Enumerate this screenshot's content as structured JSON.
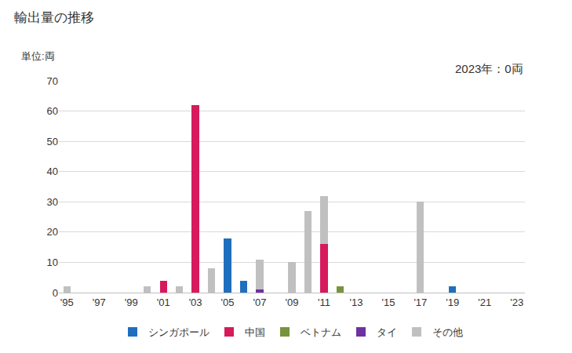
{
  "chart_data": {
    "type": "bar",
    "title": "輸出量の推移",
    "y_label": "単位:両",
    "annotations": [
      "2023年：0両"
    ],
    "categories": [
      "'95",
      null,
      "'97",
      null,
      "'99",
      null,
      "'01",
      null,
      "'03",
      null,
      "'05",
      null,
      "'07",
      null,
      "'09",
      null,
      "'11",
      null,
      "'13",
      null,
      "'15",
      null,
      "'17",
      null,
      "'19",
      null,
      "'21",
      null,
      "'23"
    ],
    "series": [
      {
        "name": "シンガポール",
        "color": "#1f6fbf",
        "values": [
          0,
          0,
          0,
          0,
          0,
          0,
          0,
          0,
          0,
          0,
          18,
          4,
          0,
          0,
          0,
          0,
          0,
          0,
          0,
          0,
          0,
          0,
          0,
          0,
          2,
          0,
          0,
          0,
          0
        ]
      },
      {
        "name": "中国",
        "color": "#d61a5c",
        "values": [
          0,
          0,
          0,
          0,
          0,
          0,
          4,
          0,
          62,
          0,
          0,
          0,
          0,
          0,
          0,
          0,
          16,
          0,
          0,
          0,
          0,
          0,
          0,
          0,
          0,
          0,
          0,
          0,
          0
        ]
      },
      {
        "name": "ベトナム",
        "color": "#77933c",
        "values": [
          0,
          0,
          0,
          0,
          0,
          0,
          0,
          0,
          0,
          0,
          0,
          0,
          0,
          0,
          0,
          0,
          0,
          2,
          0,
          0,
          0,
          0,
          0,
          0,
          0,
          0,
          0,
          0,
          0
        ]
      },
      {
        "name": "タイ",
        "color": "#7030a0",
        "values": [
          0,
          0,
          0,
          0,
          0,
          0,
          0,
          0,
          0,
          0,
          0,
          0,
          1,
          0,
          0,
          0,
          0,
          0,
          0,
          0,
          0,
          0,
          0,
          0,
          0,
          0,
          0,
          0,
          0
        ]
      },
      {
        "name": "その他",
        "color": "#c0c0c0",
        "values": [
          2,
          0,
          0,
          0,
          0,
          2,
          0,
          2,
          0,
          8,
          0,
          0,
          10,
          0,
          10,
          27,
          16,
          0,
          0,
          0,
          0,
          0,
          30,
          0,
          0,
          0,
          0,
          0,
          0
        ]
      }
    ],
    "ylim": [
      0,
      70
    ],
    "yticks": [
      0,
      10,
      20,
      30,
      40,
      50,
      60,
      70
    ],
    "stacked": true,
    "grid": true,
    "legend": "bottom"
  }
}
